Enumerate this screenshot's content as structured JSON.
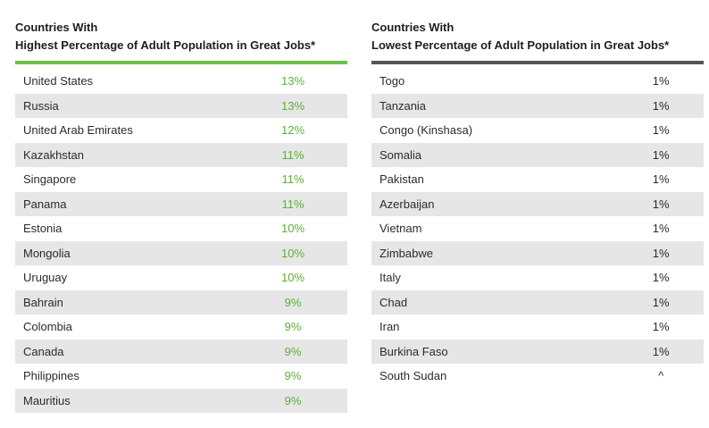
{
  "highest": {
    "title_line1": "Countries With",
    "title_line2": "Highest Percentage of Adult Population in Great Jobs*",
    "rows": [
      {
        "country": "United States",
        "value": "13%"
      },
      {
        "country": "Russia",
        "value": "13%"
      },
      {
        "country": "United Arab Emirates",
        "value": "12%"
      },
      {
        "country": "Kazakhstan",
        "value": "11%"
      },
      {
        "country": "Singapore",
        "value": "11%"
      },
      {
        "country": "Panama",
        "value": "11%"
      },
      {
        "country": "Estonia",
        "value": "10%"
      },
      {
        "country": "Mongolia",
        "value": "10%"
      },
      {
        "country": "Uruguay",
        "value": "10%"
      },
      {
        "country": "Bahrain",
        "value": "9%"
      },
      {
        "country": "Colombia",
        "value": "9%"
      },
      {
        "country": "Canada",
        "value": "9%"
      },
      {
        "country": "Philippines",
        "value": "9%"
      },
      {
        "country": "Mauritius",
        "value": "9%"
      }
    ]
  },
  "lowest": {
    "title_line1": "Countries With",
    "title_line2": "Lowest Percentage of Adult Population in Great Jobs*",
    "rows": [
      {
        "country": "Togo",
        "value": "1%"
      },
      {
        "country": "Tanzania",
        "value": "1%"
      },
      {
        "country": "Congo (Kinshasa)",
        "value": "1%"
      },
      {
        "country": "Somalia",
        "value": "1%"
      },
      {
        "country": "Pakistan",
        "value": "1%"
      },
      {
        "country": "Azerbaijan",
        "value": "1%"
      },
      {
        "country": "Vietnam",
        "value": "1%"
      },
      {
        "country": "Zimbabwe",
        "value": "1%"
      },
      {
        "country": "Italy",
        "value": "1%"
      },
      {
        "country": "Chad",
        "value": "1%"
      },
      {
        "country": "Iran",
        "value": "1%"
      },
      {
        "country": "Burkina Faso",
        "value": "1%"
      },
      {
        "country": "South Sudan",
        "value": "^"
      }
    ]
  },
  "colors": {
    "accent_green": "#6cc04a",
    "value_green": "#5bb135",
    "rule_gray": "#555555",
    "row_shade": "#e6e6e7"
  }
}
